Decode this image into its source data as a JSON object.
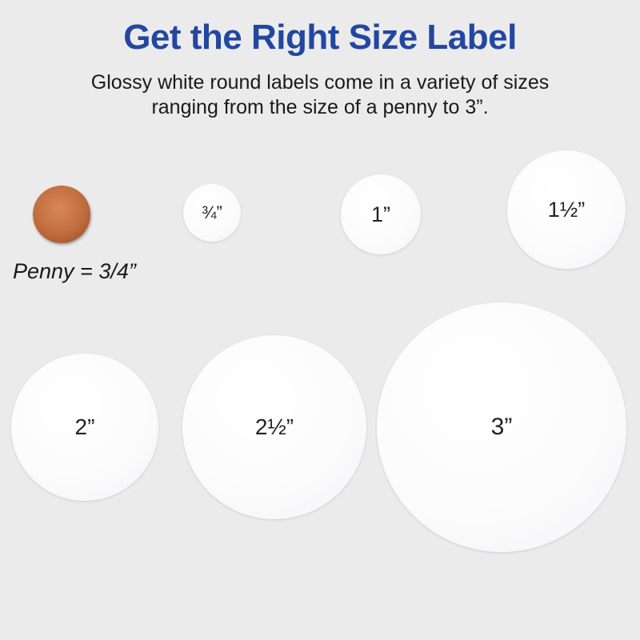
{
  "header": {
    "title": "Get the Right Size Label",
    "subtitle_line1": "Glossy white round labels come in a variety of sizes",
    "subtitle_line2": "ranging from the size of a penny to 3”."
  },
  "penny": {
    "label": "Penny = 3/4”"
  },
  "labels": [
    {
      "size": "¾”"
    },
    {
      "size": "1”"
    },
    {
      "size": "1½”"
    },
    {
      "size": "2”"
    },
    {
      "size": "2½”"
    },
    {
      "size": "3”"
    }
  ],
  "colors": {
    "title": "#2347a0",
    "background": "#ebebeb",
    "label": "#ffffff",
    "penny": "#c06c3e"
  }
}
